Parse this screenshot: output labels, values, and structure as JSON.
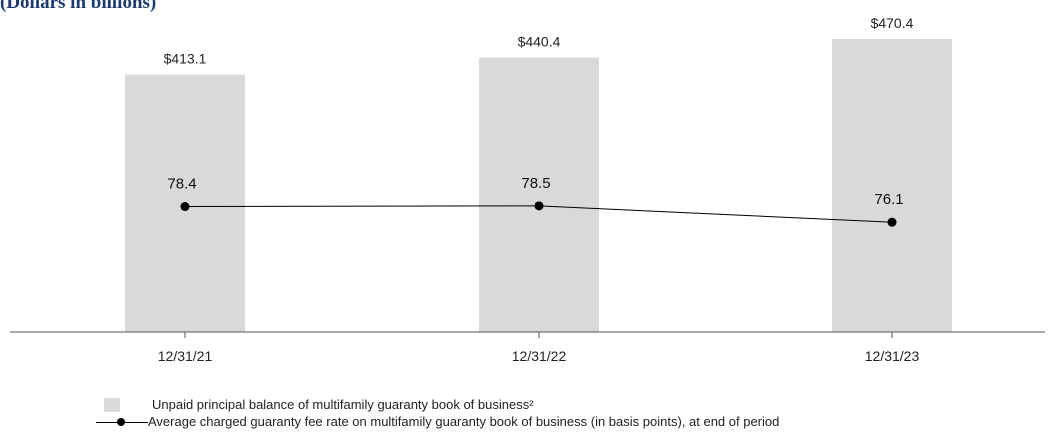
{
  "chart_data": {
    "type": "bar",
    "title": "(Dollars in billions)",
    "categories": [
      "12/31/21",
      "12/31/22",
      "12/31/23"
    ],
    "series": [
      {
        "name": "Unpaid principal balance of multifamily guaranty book of business²",
        "kind": "bar",
        "values": [
          413.1,
          440.4,
          470.4
        ],
        "labels": [
          "$413.1",
          "$440.4",
          "$470.4"
        ],
        "color": "#d9d9d9"
      },
      {
        "name": "Average charged guaranty fee rate on multifamily guaranty book of business (in basis points), at end of period",
        "kind": "line",
        "values": [
          78.4,
          78.5,
          76.1
        ],
        "labels": [
          "78.4",
          "78.5",
          "76.1"
        ],
        "color": "#000000"
      }
    ],
    "bar_ylim": [
      0,
      480
    ],
    "line_ylim": [
      60,
      82
    ],
    "legend_position": "bottom",
    "grid": false
  }
}
